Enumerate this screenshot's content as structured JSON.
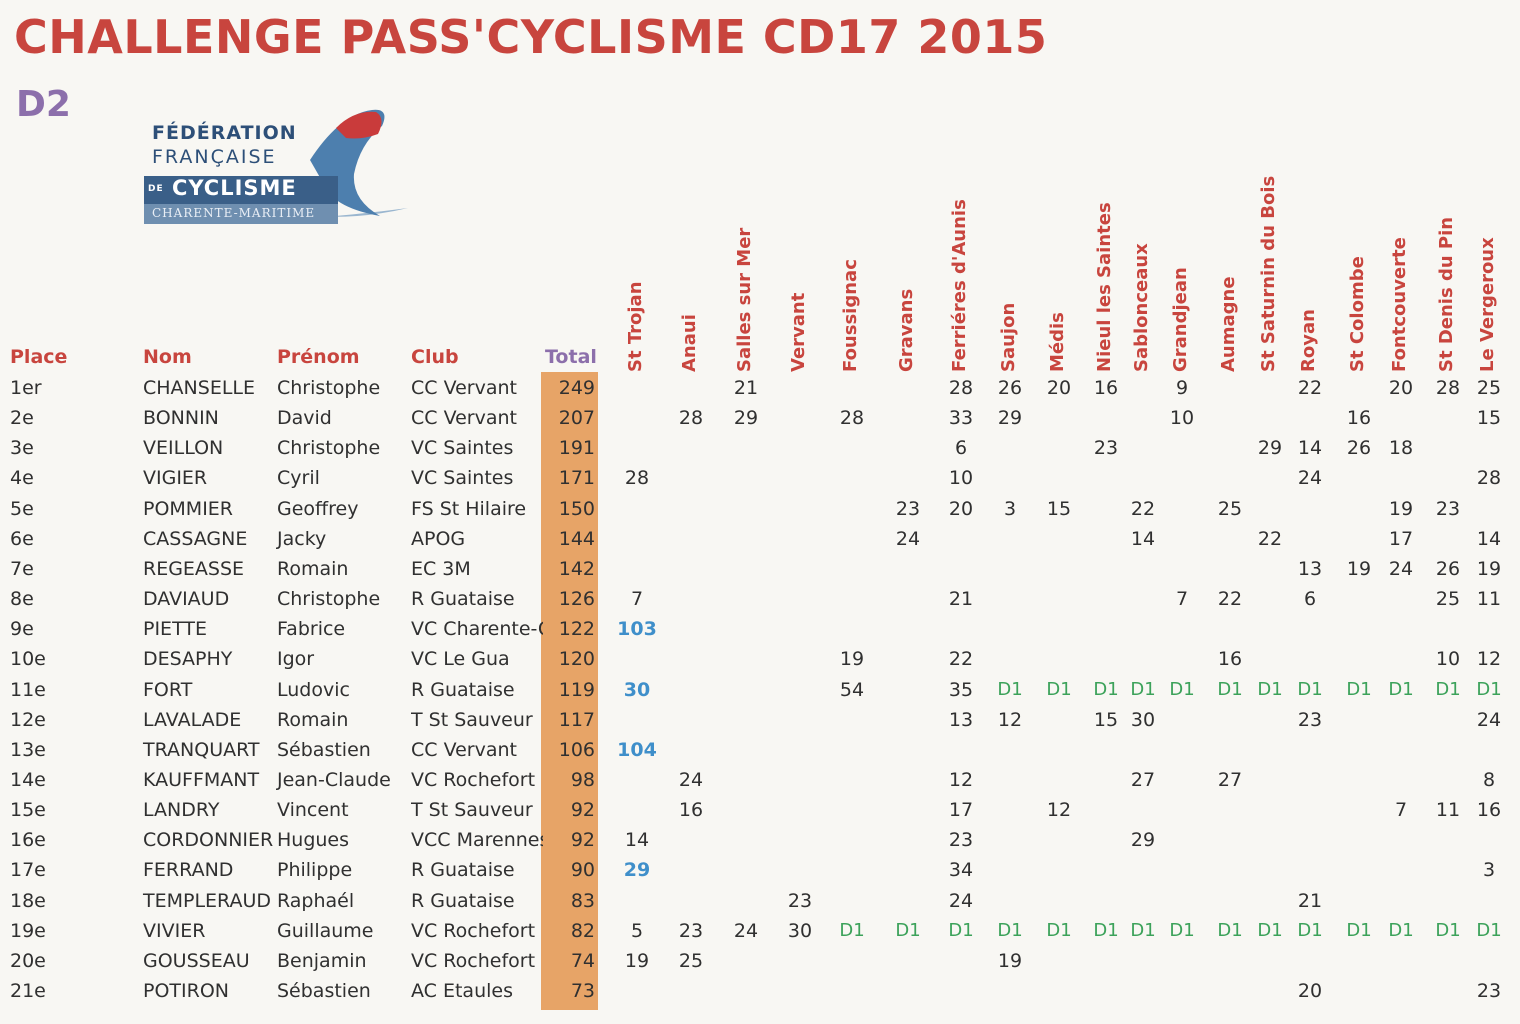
{
  "title": "CHALLENGE  PASS'CYCLISME  CD17  2015",
  "division": "D2",
  "logo": {
    "line1": "FÉDÉRATION",
    "line2": "FRANÇAISE",
    "line3": "CYCLISME",
    "line3_prefix": "DE",
    "line4": "CHARENTE-MARITIME"
  },
  "headers": {
    "place": "Place",
    "nom": "Nom",
    "prenom": "Prénom",
    "club": "Club",
    "total": "Total"
  },
  "races": [
    "St  Trojan",
    "Anaui",
    "Salles sur Mer",
    "Vervant",
    "Foussignac",
    "Gravans",
    "Ferriéres  d'Aunis",
    "Saujon",
    "Médis",
    "Nieul les Saintes",
    "Sablonceaux",
    "Grandjean",
    "Aumagne",
    "St  Saturnin du Bois",
    "Royan",
    "St  Colombe",
    "Fontcouverte",
    "St  Denis du Pin",
    "Le  Vergeroux"
  ],
  "rows": [
    {
      "place": "1er",
      "nom": "CHANSELLE",
      "prenom": "Christophe",
      "club": "CC  Vervant",
      "total": "249",
      "scores": [
        "",
        "",
        "21",
        "",
        "",
        "",
        "28",
        "26",
        "20",
        "16",
        "",
        "9",
        "",
        "",
        "22",
        "",
        "20",
        "28",
        "25"
      ]
    },
    {
      "place": "2e",
      "nom": "BONNIN",
      "prenom": "David",
      "club": "CC  Vervant",
      "total": "207",
      "scores": [
        "",
        "28",
        "29",
        "",
        "28",
        "",
        "33",
        "29",
        "",
        "",
        "",
        "10",
        "",
        "",
        "",
        "16",
        "",
        "",
        "15"
      ]
    },
    {
      "place": "3e",
      "nom": "VEILLON",
      "prenom": "Christophe",
      "club": "VC  Saintes",
      "total": "191",
      "scores": [
        "",
        "",
        "",
        "",
        "",
        "",
        "6",
        "",
        "",
        "23",
        "",
        "",
        "",
        "29",
        "14",
        "26",
        "18",
        "",
        ""
      ]
    },
    {
      "place": "4e",
      "nom": "VIGIER",
      "prenom": "Cyril",
      "club": "VC  Saintes",
      "total": "171",
      "scores": [
        "28",
        "",
        "",
        "",
        "",
        "",
        "10",
        "",
        "",
        "",
        "",
        "",
        "",
        "",
        "24",
        "",
        "",
        "",
        "28"
      ]
    },
    {
      "place": "5e",
      "nom": "POMMIER",
      "prenom": "Geoffrey",
      "club": "FS  St  Hilaire",
      "total": "150",
      "scores": [
        "",
        "",
        "",
        "",
        "",
        "23",
        "20",
        "3",
        "15",
        "",
        "22",
        "",
        "25",
        "",
        "",
        "",
        "19",
        "23",
        ""
      ]
    },
    {
      "place": "6e",
      "nom": "CASSAGNE",
      "prenom": "Jacky",
      "club": "APOG",
      "total": "144",
      "scores": [
        "",
        "",
        "",
        "",
        "",
        "24",
        "",
        "",
        "",
        "",
        "14",
        "",
        "",
        "22",
        "",
        "",
        "17",
        "",
        "14"
      ]
    },
    {
      "place": "7e",
      "nom": "REGEASSE",
      "prenom": "Romain",
      "club": "EC 3M",
      "total": "142",
      "scores": [
        "",
        "",
        "",
        "",
        "",
        "",
        "",
        "",
        "",
        "",
        "",
        "",
        "",
        "",
        "13",
        "19",
        "24",
        "26",
        "19"
      ]
    },
    {
      "place": "8e",
      "nom": "DAVIAUD",
      "prenom": "Christophe",
      "club": "R  Guataise",
      "total": "126",
      "scores": [
        "7",
        "",
        "",
        "",
        "",
        "",
        "21",
        "",
        "",
        "",
        "",
        "7",
        "22",
        "",
        "6",
        "",
        "",
        "25",
        "11"
      ]
    },
    {
      "place": "9e",
      "nom": "PIETTE",
      "prenom": "Fabrice",
      "club": "VC Charente-O",
      "total": "122",
      "scores": [
        "103",
        "",
        "",
        "",
        "",
        "",
        "",
        "",
        "",
        "",
        "",
        "",
        "",
        "",
        "",
        "",
        "",
        "",
        ""
      ]
    },
    {
      "place": "10e",
      "nom": "DESAPHY",
      "prenom": "Igor",
      "club": "VC Le Gua",
      "total": "120",
      "scores": [
        "",
        "",
        "",
        "",
        "19",
        "",
        "22",
        "",
        "",
        "",
        "",
        "",
        "16",
        "",
        "",
        "",
        "",
        "10",
        "12"
      ]
    },
    {
      "place": "11e",
      "nom": "FORT",
      "prenom": "Ludovic",
      "club": "R  Guataise",
      "total": "119",
      "scores": [
        "30",
        "",
        "",
        "",
        "54",
        "",
        "35",
        "D1",
        "D1",
        "D1",
        "D1",
        "D1",
        "D1",
        "D1",
        "D1",
        "D1",
        "D1",
        "D1",
        "D1"
      ]
    },
    {
      "place": "12e",
      "nom": "LAVALADE",
      "prenom": "Romain",
      "club": "T  St  Sauveur",
      "total": "117",
      "scores": [
        "",
        "",
        "",
        "",
        "",
        "",
        "13",
        "12",
        "",
        "15",
        "30",
        "",
        "",
        "",
        "23",
        "",
        "",
        "",
        "24"
      ]
    },
    {
      "place": "13e",
      "nom": "TRANQUART",
      "prenom": "Sébastien",
      "club": "CC  Vervant",
      "total": "106",
      "scores": [
        "104",
        "",
        "",
        "",
        "",
        "",
        "",
        "",
        "",
        "",
        "",
        "",
        "",
        "",
        "",
        "",
        "",
        "",
        ""
      ]
    },
    {
      "place": "14e",
      "nom": "KAUFFMANT",
      "prenom": "Jean-Claude",
      "club": "VC  Rochefort",
      "total": "98",
      "scores": [
        "",
        "24",
        "",
        "",
        "",
        "",
        "12",
        "",
        "",
        "",
        "27",
        "",
        "27",
        "",
        "",
        "",
        "",
        "",
        "8"
      ]
    },
    {
      "place": "15e",
      "nom": "LANDRY",
      "prenom": "Vincent",
      "club": "T  St  Sauveur",
      "total": "92",
      "scores": [
        "",
        "16",
        "",
        "",
        "",
        "",
        "17",
        "",
        "12",
        "",
        "",
        "",
        "",
        "",
        "",
        "",
        "7",
        "11",
        "16"
      ]
    },
    {
      "place": "16e",
      "nom": "CORDONNIER",
      "prenom": "Hugues",
      "club": "VCC  Marennes",
      "total": "92",
      "scores": [
        "14",
        "",
        "",
        "",
        "",
        "",
        "23",
        "",
        "",
        "",
        "29",
        "",
        "",
        "",
        "",
        "",
        "",
        "",
        ""
      ]
    },
    {
      "place": "17e",
      "nom": "FERRAND",
      "prenom": "Philippe",
      "club": "R  Guataise",
      "total": "90",
      "scores": [
        "29",
        "",
        "",
        "",
        "",
        "",
        "34",
        "",
        "",
        "",
        "",
        "",
        "",
        "",
        "",
        "",
        "",
        "",
        "3"
      ]
    },
    {
      "place": "18e",
      "nom": "TEMPLERAUD",
      "prenom": "Raphaél",
      "club": "R  Guataise",
      "total": "83",
      "scores": [
        "",
        "",
        "",
        "23",
        "",
        "",
        "24",
        "",
        "",
        "",
        "",
        "",
        "",
        "",
        "21",
        "",
        "",
        "",
        ""
      ]
    },
    {
      "place": "19e",
      "nom": "VIVIER",
      "prenom": "Guillaume",
      "club": "VC  Rochefort",
      "total": "82",
      "scores": [
        "5",
        "23",
        "24",
        "30",
        "D1",
        "D1",
        "D1",
        "D1",
        "D1",
        "D1",
        "D1",
        "D1",
        "D1",
        "D1",
        "D1",
        "D1",
        "D1",
        "D1",
        "D1"
      ]
    },
    {
      "place": "20e",
      "nom": "GOUSSEAU",
      "prenom": "Benjamin",
      "club": "VC  Rochefort",
      "total": "74",
      "scores": [
        "19",
        "25",
        "",
        "",
        "",
        "",
        "",
        "19",
        "",
        "",
        "",
        "",
        "",
        "",
        "",
        "",
        "",
        "",
        ""
      ]
    },
    {
      "place": "21e",
      "nom": "POTIRON",
      "prenom": "Sébastien",
      "club": "AC Etaules",
      "total": "73",
      "scores": [
        "",
        "",
        "",
        "",
        "",
        "",
        "",
        "",
        "",
        "",
        "",
        "",
        "",
        "",
        "20",
        "",
        "",
        "",
        "23"
      ]
    }
  ],
  "colors": {
    "title": "#c8453e",
    "division": "#8c6fab",
    "total_column": "#e7a467",
    "d1_marker": "#3ca25a",
    "other_division_points": "#3f8fca"
  }
}
